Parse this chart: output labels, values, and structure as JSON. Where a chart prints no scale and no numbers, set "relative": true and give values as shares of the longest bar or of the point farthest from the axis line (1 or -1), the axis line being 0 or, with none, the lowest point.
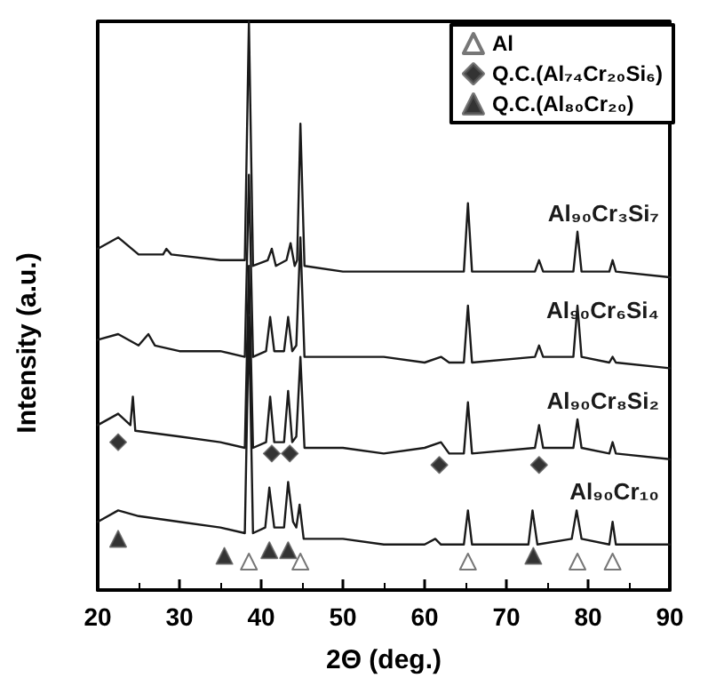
{
  "chart_data": {
    "type": "line",
    "relative": true,
    "xlabel": "2Θ (deg.)",
    "ylabel": "Intensity (a.u.)",
    "xlim": [
      20,
      90
    ],
    "xticks": [
      20,
      30,
      40,
      50,
      60,
      70,
      80,
      90
    ],
    "grid": false,
    "legend": "top right",
    "marker": "none",
    "line_style": "solid",
    "series": [
      {
        "name": "Al₉₀Cr₁₀",
        "color": "#1a1a1a",
        "x": [
          20,
          22.5,
          25,
          30,
          35,
          38,
          38.5,
          39,
          40.5,
          41,
          41.6,
          42.8,
          43.3,
          43.9,
          44.3,
          44.7,
          45.2,
          50,
          55,
          60,
          61.3,
          62,
          64.8,
          65.3,
          65.8,
          72.7,
          73.2,
          73.8,
          78,
          78.6,
          79.2,
          82.6,
          83,
          83.4,
          90
        ],
        "values": [
          0.12,
          0.14,
          0.13,
          0.12,
          0.11,
          0.1,
          0.48,
          0.1,
          0.11,
          0.18,
          0.11,
          0.11,
          0.19,
          0.12,
          0.11,
          0.15,
          0.09,
          0.09,
          0.08,
          0.08,
          0.09,
          0.08,
          0.08,
          0.14,
          0.08,
          0.08,
          0.14,
          0.08,
          0.09,
          0.14,
          0.09,
          0.08,
          0.12,
          0.08,
          0.08
        ]
      },
      {
        "name": "Al₉₀Cr₈Si₂",
        "color": "#1a1a1a",
        "x": [
          20,
          22.5,
          24,
          24,
          24.3,
          24.6,
          30,
          35,
          38,
          38.5,
          39,
          40.6,
          41.1,
          41.6,
          42.8,
          43.3,
          43.8,
          44.3,
          44.8,
          45.3,
          50,
          55,
          60,
          62,
          63,
          64.8,
          65.3,
          65.8,
          73.5,
          74,
          74.5,
          78.2,
          78.7,
          79.2,
          82.6,
          83,
          83.4,
          90
        ],
        "values": [
          0.29,
          0.31,
          0.29,
          0.29,
          0.34,
          0.28,
          0.27,
          0.26,
          0.25,
          0.57,
          0.25,
          0.26,
          0.34,
          0.26,
          0.26,
          0.35,
          0.26,
          0.27,
          0.41,
          0.25,
          0.25,
          0.24,
          0.25,
          0.26,
          0.24,
          0.24,
          0.33,
          0.24,
          0.25,
          0.29,
          0.25,
          0.25,
          0.3,
          0.25,
          0.24,
          0.26,
          0.24,
          0.23
        ]
      },
      {
        "name": "Al₉₀Cr₆Si₄",
        "color": "#1a1a1a",
        "x": [
          20,
          22.5,
          25,
          26.2,
          27,
          30,
          35,
          38,
          38.5,
          39,
          40.6,
          41.1,
          41.6,
          42.8,
          43.3,
          43.8,
          44.3,
          44.8,
          45.3,
          50,
          55,
          60,
          62,
          63,
          64.8,
          65.3,
          65.8,
          73.5,
          74,
          74.5,
          78.2,
          78.7,
          79.2,
          82.6,
          83,
          83.4,
          90
        ],
        "values": [
          0.44,
          0.45,
          0.43,
          0.45,
          0.43,
          0.42,
          0.42,
          0.41,
          0.73,
          0.41,
          0.42,
          0.48,
          0.42,
          0.42,
          0.48,
          0.42,
          0.43,
          0.62,
          0.41,
          0.41,
          0.41,
          0.4,
          0.41,
          0.4,
          0.4,
          0.5,
          0.4,
          0.41,
          0.43,
          0.41,
          0.41,
          0.5,
          0.41,
          0.4,
          0.41,
          0.4,
          0.39
        ]
      },
      {
        "name": "Al₉₀Cr₃Si₇",
        "color": "#1a1a1a",
        "x": [
          20,
          22.5,
          25,
          28,
          28.4,
          29,
          35,
          38,
          38.5,
          39,
          40.8,
          41.3,
          41.8,
          43.1,
          43.6,
          44.1,
          44.4,
          44.8,
          45.3,
          50,
          55,
          60,
          64.8,
          65.3,
          65.8,
          73.5,
          74,
          74.5,
          78.2,
          78.7,
          79.2,
          82.6,
          83,
          83.4,
          90
        ],
        "values": [
          0.6,
          0.62,
          0.59,
          0.59,
          0.6,
          0.59,
          0.58,
          0.58,
          1,
          0.57,
          0.58,
          0.6,
          0.57,
          0.58,
          0.61,
          0.57,
          0.58,
          0.82,
          0.57,
          0.56,
          0.56,
          0.56,
          0.56,
          0.68,
          0.56,
          0.56,
          0.58,
          0.56,
          0.56,
          0.63,
          0.56,
          0.56,
          0.58,
          0.56,
          0.55
        ]
      },
      {
        "name": "Al",
        "type": "scatter",
        "marker": "triangle",
        "color": "#ffffff",
        "x": [
          38.5,
          44.8,
          65.3,
          78.7,
          83
        ],
        "values": [
          0.05,
          0.05,
          0.05,
          0.05,
          0.05
        ]
      },
      {
        "name": "Q.C.(Al₇₄Cr₂₀Si₆)",
        "type": "scatter",
        "marker": "diamond",
        "color": "#000000",
        "x": [
          22.5,
          41.3,
          43.5,
          61.8,
          74
        ],
        "values": [
          0.26,
          0.24,
          0.24,
          0.22,
          0.22
        ]
      },
      {
        "name": "Q.C.(Al₈₀Cr₂₀)",
        "type": "scatter",
        "marker": "triangle",
        "color": "#000000",
        "x": [
          22.5,
          35.5,
          41,
          43.3,
          73.3
        ],
        "values": [
          0.09,
          0.06,
          0.07,
          0.07,
          0.06
        ]
      }
    ]
  }
}
